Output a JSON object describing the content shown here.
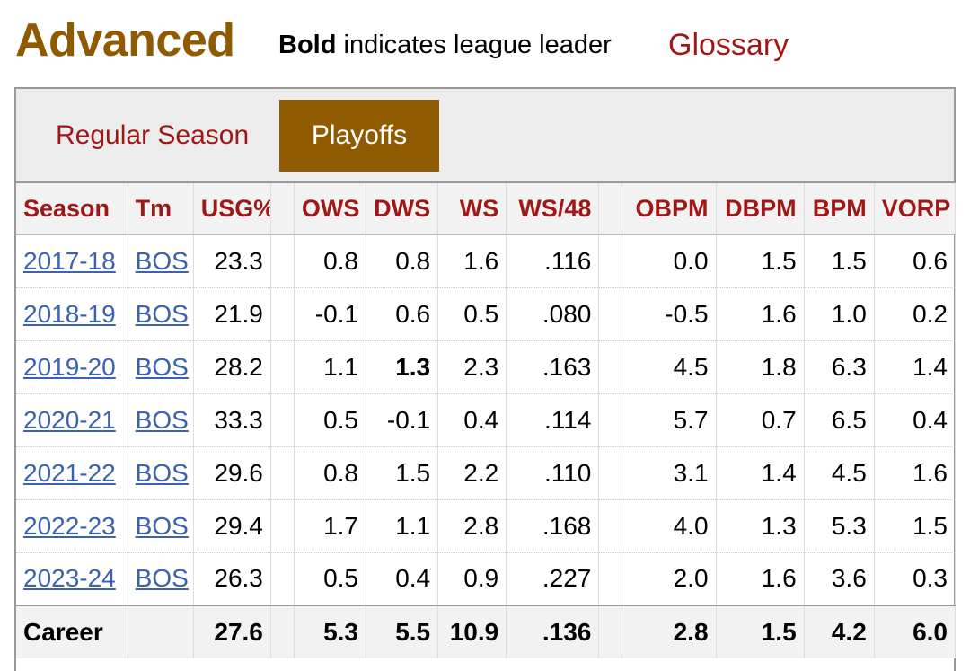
{
  "header": {
    "title": "Advanced",
    "note_bold": "Bold",
    "note_rest": " indicates league leader",
    "glossary_link": "Glossary"
  },
  "tabs": [
    {
      "label": "Regular Season",
      "active": false
    },
    {
      "label": "Playoffs",
      "active": true
    }
  ],
  "table": {
    "columns": [
      "Season",
      "Tm",
      "USG%",
      "OWS",
      "DWS",
      "WS",
      "WS/48",
      "OBPM",
      "DBPM",
      "BPM",
      "VORP"
    ],
    "rows": [
      {
        "season": "2017-18",
        "tm": "BOS",
        "usg": "23.3",
        "ows": "0.8",
        "dws": "0.8",
        "ws": "1.6",
        "ws48": ".116",
        "obpm": "0.0",
        "dbpm": "1.5",
        "bpm": "1.5",
        "vorp": "0.6"
      },
      {
        "season": "2018-19",
        "tm": "BOS",
        "usg": "21.9",
        "ows": "-0.1",
        "dws": "0.6",
        "ws": "0.5",
        "ws48": ".080",
        "obpm": "-0.5",
        "dbpm": "1.6",
        "bpm": "1.0",
        "vorp": "0.2"
      },
      {
        "season": "2019-20",
        "tm": "BOS",
        "usg": "28.2",
        "ows": "1.1",
        "dws": "1.3",
        "ws": "2.3",
        "ws48": ".163",
        "obpm": "4.5",
        "dbpm": "1.8",
        "bpm": "6.3",
        "vorp": "1.4"
      },
      {
        "season": "2020-21",
        "tm": "BOS",
        "usg": "33.3",
        "ows": "0.5",
        "dws": "-0.1",
        "ws": "0.4",
        "ws48": ".114",
        "obpm": "5.7",
        "dbpm": "0.7",
        "bpm": "6.5",
        "vorp": "0.4"
      },
      {
        "season": "2021-22",
        "tm": "BOS",
        "usg": "29.6",
        "ows": "0.8",
        "dws": "1.5",
        "ws": "2.2",
        "ws48": ".110",
        "obpm": "3.1",
        "dbpm": "1.4",
        "bpm": "4.5",
        "vorp": "1.6"
      },
      {
        "season": "2022-23",
        "tm": "BOS",
        "usg": "29.4",
        "ows": "1.7",
        "dws": "1.1",
        "ws": "2.8",
        "ws48": ".168",
        "obpm": "4.0",
        "dbpm": "1.3",
        "bpm": "5.3",
        "vorp": "1.5"
      },
      {
        "season": "2023-24",
        "tm": "BOS",
        "usg": "26.3",
        "ows": "0.5",
        "dws": "0.4",
        "ws": "0.9",
        "ws48": ".227",
        "obpm": "2.0",
        "dbpm": "1.6",
        "bpm": "3.6",
        "vorp": "0.3"
      }
    ],
    "career": {
      "label": "Career",
      "usg": "27.6",
      "ows": "5.3",
      "dws": "5.5",
      "ws": "10.9",
      "ws48": ".136",
      "obpm": "2.8",
      "dbpm": "1.5",
      "bpm": "4.2",
      "vorp": "6.0"
    },
    "league_leader_cells": [
      {
        "row": 2,
        "key": "dws"
      }
    ]
  },
  "colors": {
    "accent_gold": "#8f5a00",
    "link_red": "#9f1717",
    "link_blue": "#3a62b0"
  }
}
